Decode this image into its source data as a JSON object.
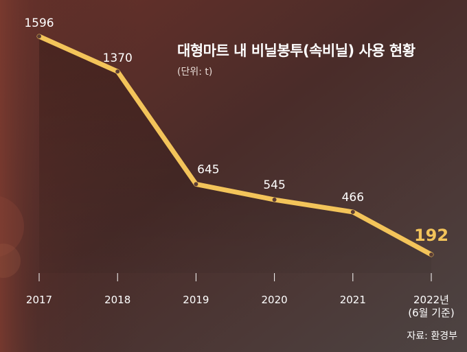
{
  "chart_data": {
    "type": "line",
    "title": "대형마트 내 비닐봉투(속비닐) 사용 현황",
    "unit_label": "(단위: t)",
    "source": "자료: 환경부",
    "categories": [
      "2017",
      "2018",
      "2019",
      "2020",
      "2021",
      "2022년\n(6월 기준)"
    ],
    "values": [
      1596,
      1370,
      645,
      545,
      466,
      192
    ],
    "data_labels": [
      "1596",
      "1370",
      "645",
      "545",
      "466",
      "192"
    ],
    "highlight_index": 5,
    "grid": false,
    "colors": {
      "line": "#f3c45a",
      "highlight_label": "#f3c45a",
      "text": "#ffffff",
      "background": "#3b2a27"
    }
  }
}
